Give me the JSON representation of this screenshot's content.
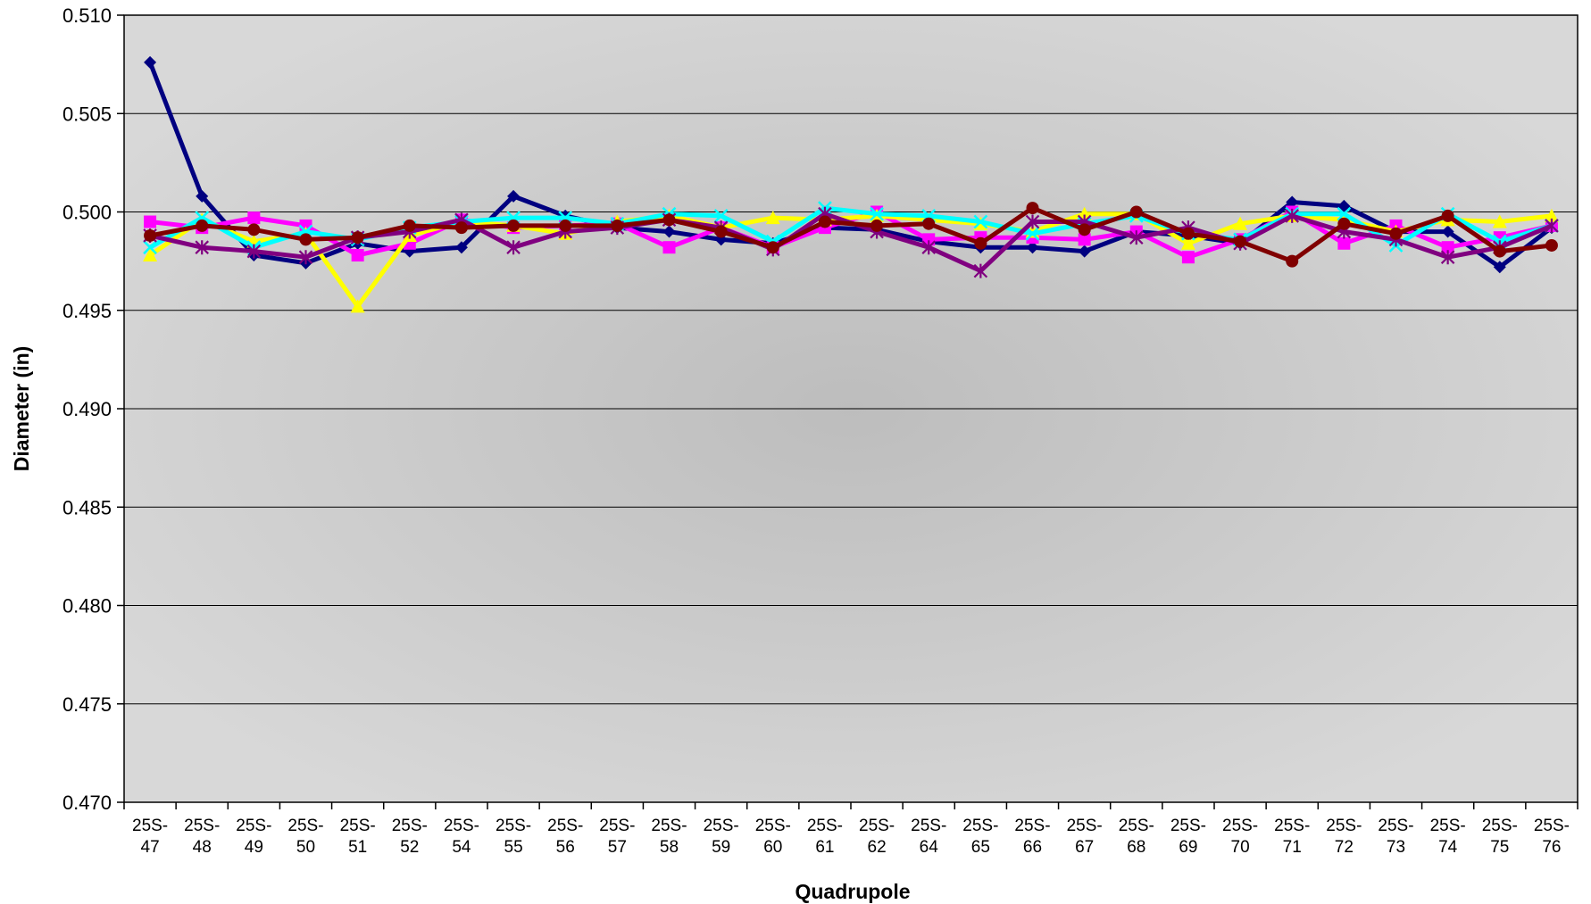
{
  "chart_data": {
    "type": "line",
    "title": "",
    "xlabel": "Quadrupole",
    "ylabel": "Diameter (in)",
    "ylim": [
      0.47,
      0.51
    ],
    "yticks": [
      "0.470",
      "0.475",
      "0.480",
      "0.485",
      "0.490",
      "0.495",
      "0.500",
      "0.505",
      "0.510"
    ],
    "grid": "horizontal",
    "legend": "none",
    "categories": [
      [
        "25S-",
        "47"
      ],
      [
        "25S-",
        "48"
      ],
      [
        "25S-",
        "49"
      ],
      [
        "25S-",
        "50"
      ],
      [
        "25S-",
        "51"
      ],
      [
        "25S-",
        "52"
      ],
      [
        "25S-",
        "54"
      ],
      [
        "25S-",
        "55"
      ],
      [
        "25S-",
        "56"
      ],
      [
        "25S-",
        "57"
      ],
      [
        "25S-",
        "58"
      ],
      [
        "25S-",
        "59"
      ],
      [
        "25S-",
        "60"
      ],
      [
        "25S-",
        "61"
      ],
      [
        "25S-",
        "62"
      ],
      [
        "25S-",
        "64"
      ],
      [
        "25S-",
        "65"
      ],
      [
        "25S-",
        "66"
      ],
      [
        "25S-",
        "67"
      ],
      [
        "25S-",
        "68"
      ],
      [
        "25S-",
        "69"
      ],
      [
        "25S-",
        "70"
      ],
      [
        "25S-",
        "71"
      ],
      [
        "25S-",
        "72"
      ],
      [
        "25S-",
        "73"
      ],
      [
        "25S-",
        "74"
      ],
      [
        "25S-",
        "75"
      ],
      [
        "25S-",
        "76"
      ]
    ],
    "series": [
      {
        "color": "#000080",
        "marker": "diamond",
        "values": [
          0.5076,
          0.5008,
          0.4978,
          0.4974,
          0.4984,
          0.498,
          0.4982,
          0.5008,
          0.4998,
          0.4992,
          0.499,
          0.4986,
          0.4984,
          0.4992,
          0.4991,
          0.4985,
          0.4982,
          0.4982,
          0.498,
          0.499,
          0.4988,
          0.4984,
          0.5005,
          0.5003,
          0.499,
          0.499,
          0.4972,
          0.4992
        ]
      },
      {
        "color": "#FF00FF",
        "marker": "square",
        "values": [
          0.4995,
          0.4992,
          0.4997,
          0.4993,
          0.4978,
          0.4984,
          0.4996,
          0.4992,
          0.4993,
          0.4994,
          0.4982,
          0.4992,
          0.4982,
          0.4992,
          0.5,
          0.4986,
          0.4987,
          0.4987,
          0.4986,
          0.499,
          0.4977,
          0.4986,
          0.5,
          0.4984,
          0.4993,
          0.4982,
          0.4987,
          0.4993
        ]
      },
      {
        "color": "#FFFF00",
        "marker": "triangle",
        "values": [
          0.4978,
          0.4996,
          0.4985,
          0.4989,
          0.4952,
          0.4988,
          0.4995,
          0.4993,
          0.4989,
          0.4995,
          0.4998,
          0.4992,
          0.4997,
          0.4996,
          0.4998,
          0.4996,
          0.4994,
          0.499,
          0.4999,
          0.4999,
          0.4984,
          0.4994,
          0.4998,
          0.4996,
          0.499,
          0.4996,
          0.4995,
          0.4998
        ]
      },
      {
        "color": "#00FFFF",
        "marker": "x",
        "values": [
          0.4982,
          0.4997,
          0.4982,
          0.499,
          0.4986,
          0.4992,
          0.4995,
          0.4997,
          0.4997,
          0.4994,
          0.4999,
          0.4998,
          0.4985,
          0.5002,
          0.4999,
          0.4998,
          0.4995,
          0.4989,
          0.4994,
          0.4998,
          0.4989,
          0.4986,
          0.4999,
          0.4999,
          0.4983,
          0.4999,
          0.4985,
          0.4993
        ]
      },
      {
        "color": "#800080",
        "marker": "star",
        "values": [
          0.4988,
          0.4982,
          0.498,
          0.4977,
          0.4987,
          0.499,
          0.4996,
          0.4982,
          0.499,
          0.4992,
          0.4996,
          0.4992,
          0.4981,
          0.4999,
          0.499,
          0.4982,
          0.497,
          0.4995,
          0.4995,
          0.4987,
          0.4992,
          0.4984,
          0.4998,
          0.499,
          0.4986,
          0.4977,
          0.4982,
          0.4993
        ]
      },
      {
        "color": "#800000",
        "marker": "circle",
        "values": [
          0.4988,
          0.4993,
          0.4991,
          0.4986,
          0.4987,
          0.4993,
          0.4992,
          0.4993,
          0.4993,
          0.4993,
          0.4996,
          0.499,
          0.4982,
          0.4995,
          0.4993,
          0.4994,
          0.4984,
          0.5002,
          0.4991,
          0.5,
          0.4989,
          0.4985,
          0.4975,
          0.4994,
          0.4989,
          0.4998,
          0.498,
          0.4983
        ]
      }
    ]
  }
}
